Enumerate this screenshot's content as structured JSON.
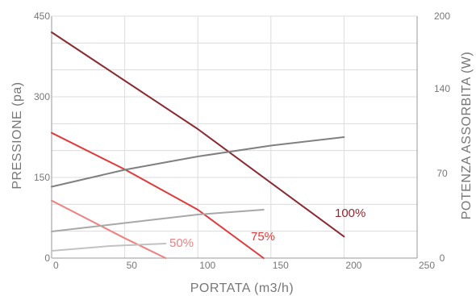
{
  "chart_data": {
    "type": "line",
    "xlabel": "PORTATA (m3/h)",
    "ylabel_left": "PRESSIONE (pa)",
    "ylabel_right": "POTENZA ASSORBITA (W)",
    "xlim": [
      0,
      250
    ],
    "ylim_left": [
      0,
      450
    ],
    "ylim_right": [
      0,
      200
    ],
    "x_ticks": [
      "0",
      "50",
      "100",
      "150",
      "200",
      "250"
    ],
    "y_left_ticks": [
      "0",
      "150",
      "300",
      "450"
    ],
    "y_right_ticks": [
      "0",
      "70",
      "140",
      "200"
    ],
    "grid": true,
    "series": [
      {
        "name": "100%",
        "axis": "left",
        "color": "#8b2a32",
        "x": [
          0,
          50,
          100,
          150,
          200
        ],
        "y": [
          420,
          330,
          240,
          140,
          40
        ]
      },
      {
        "name": "75%",
        "axis": "left",
        "color": "#e03a3a",
        "x": [
          0,
          50,
          100,
          145
        ],
        "y": [
          233,
          165,
          90,
          0
        ]
      },
      {
        "name": "50%",
        "axis": "left",
        "color": "#f08080",
        "x": [
          0,
          25,
          50,
          78
        ],
        "y": [
          107,
          72,
          37,
          0
        ]
      },
      {
        "axis": "right",
        "color": "#808080",
        "x": [
          0,
          50,
          100,
          150,
          200
        ],
        "y": [
          59,
          73,
          84,
          93,
          100
        ]
      },
      {
        "axis": "right",
        "color": "#a8a8a8",
        "x": [
          0,
          50,
          100,
          145
        ],
        "y": [
          22,
          29,
          36,
          40
        ]
      },
      {
        "axis": "right",
        "color": "#c2c2c2",
        "x": [
          0,
          40,
          78
        ],
        "y": [
          6,
          10,
          12
        ]
      }
    ]
  }
}
